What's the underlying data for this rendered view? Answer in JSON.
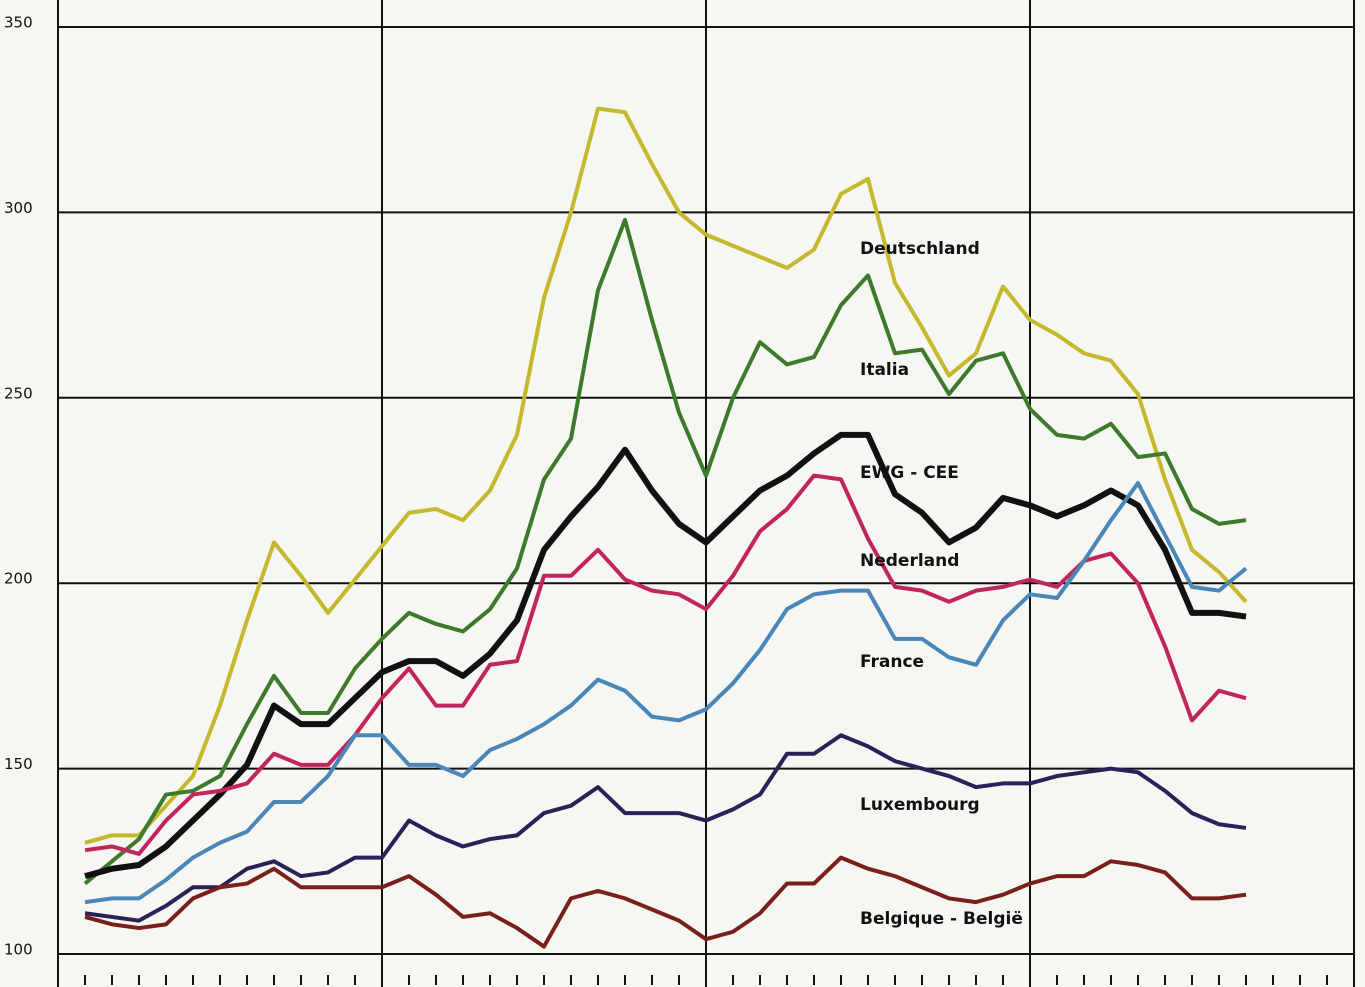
{
  "chart_data": {
    "type": "line",
    "categories": [
      null,
      null,
      null,
      null,
      null,
      null,
      null,
      null,
      null,
      null,
      null,
      null,
      null,
      null,
      null,
      null,
      null,
      null,
      null,
      null,
      null,
      null,
      null,
      null,
      null,
      null,
      null,
      null,
      null,
      null,
      null,
      null,
      null,
      null,
      null,
      null,
      null,
      null,
      null,
      null,
      null,
      null,
      null,
      null
    ],
    "ylim": [
      100,
      350
    ],
    "yticks": [
      100,
      150,
      200,
      250,
      300,
      350
    ],
    "grid": true,
    "series": [
      {
        "name": "Deutschland",
        "color": "#c4b82c",
        "values": [
          130,
          132,
          132,
          140,
          148,
          167,
          190,
          211,
          202,
          192,
          201,
          210,
          219,
          220,
          217,
          225,
          240,
          277,
          300,
          328,
          327,
          313,
          300,
          294,
          291,
          288,
          285,
          290,
          305,
          309,
          281,
          269,
          256,
          262,
          280,
          271,
          267,
          262,
          260,
          251,
          228,
          209,
          203,
          195
        ]
      },
      {
        "name": "Italia",
        "color": "#3e7a2c",
        "values": [
          119,
          125,
          131,
          143,
          144,
          148,
          162,
          175,
          165,
          165,
          177,
          185,
          192,
          189,
          187,
          193,
          204,
          228,
          239,
          279,
          298,
          271,
          246,
          229,
          250,
          265,
          259,
          261,
          275,
          283,
          262,
          263,
          251,
          260,
          262,
          247,
          240,
          239,
          243,
          234,
          235,
          220,
          216,
          217
        ]
      },
      {
        "name": "EWG - CEE",
        "color": "#111111",
        "values": [
          121,
          123,
          124,
          129,
          136,
          143,
          151,
          167,
          162,
          162,
          169,
          176,
          179,
          179,
          175,
          181,
          190,
          209,
          218,
          226,
          236,
          225,
          216,
          211,
          218,
          225,
          229,
          235,
          240,
          240,
          224,
          219,
          211,
          215,
          223,
          221,
          218,
          221,
          225,
          221,
          209,
          192,
          192,
          191
        ]
      },
      {
        "name": "Nederland",
        "color": "#c2255c",
        "values": [
          128,
          129,
          127,
          136,
          143,
          144,
          146,
          154,
          151,
          151,
          159,
          169,
          177,
          167,
          167,
          178,
          179,
          202,
          202,
          209,
          201,
          198,
          197,
          193,
          202,
          214,
          220,
          229,
          228,
          212,
          199,
          198,
          195,
          198,
          199,
          201,
          199,
          206,
          208,
          200,
          183,
          163,
          171,
          169
        ]
      },
      {
        "name": "France",
        "color": "#4a86b8",
        "values": [
          114,
          115,
          115,
          120,
          126,
          130,
          133,
          141,
          141,
          148,
          159,
          159,
          151,
          151,
          148,
          155,
          158,
          162,
          167,
          174,
          171,
          164,
          163,
          166,
          173,
          182,
          193,
          197,
          198,
          198,
          185,
          185,
          180,
          178,
          190,
          197,
          196,
          206,
          217,
          227,
          213,
          199,
          198,
          204
        ]
      },
      {
        "name": "Luxembourg",
        "color": "#2a2158",
        "values": [
          111,
          110,
          109,
          113,
          118,
          118,
          123,
          125,
          121,
          122,
          126,
          126,
          136,
          132,
          129,
          131,
          132,
          138,
          140,
          145,
          138,
          138,
          138,
          136,
          139,
          143,
          154,
          154,
          159,
          156,
          152,
          150,
          148,
          145,
          146,
          146,
          148,
          149,
          150,
          149,
          144,
          138,
          135,
          134
        ]
      },
      {
        "name": "Belgique - België",
        "color": "#7a201c",
        "values": [
          110,
          108,
          107,
          108,
          115,
          118,
          119,
          123,
          118,
          118,
          118,
          118,
          121,
          116,
          110,
          111,
          107,
          102,
          115,
          117,
          115,
          112,
          109,
          104,
          106,
          111,
          119,
          119,
          126,
          123,
          121,
          118,
          115,
          114,
          116,
          119,
          121,
          121,
          125,
          124,
          122,
          115,
          115,
          116
        ]
      }
    ]
  }
}
